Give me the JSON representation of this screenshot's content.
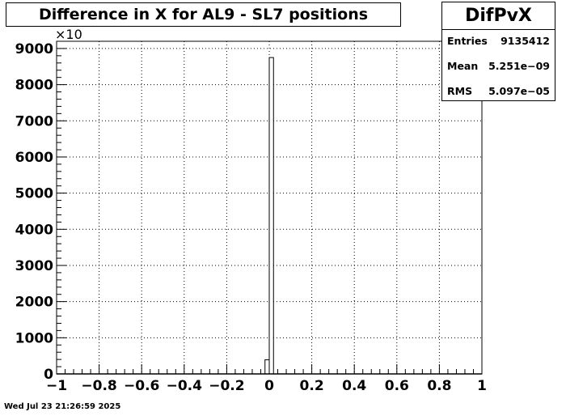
{
  "chart_data": {
    "type": "bar",
    "title": "Difference in X for AL9 - SL7 positions",
    "xlabel": "",
    "ylabel": "",
    "xlim": [
      -1,
      1
    ],
    "ylim": [
      0,
      9200
    ],
    "y_multiplier_label": "×10",
    "x_ticks": [
      -1,
      -0.8,
      -0.6,
      -0.4,
      -0.2,
      0,
      0.2,
      0.4,
      0.6,
      0.8,
      1
    ],
    "x_tick_labels": [
      "−1",
      "−0.8",
      "−0.6",
      "−0.4",
      "−0.2",
      "0",
      "0.2",
      "0.4",
      "0.6",
      "0.8",
      "1"
    ],
    "y_ticks": [
      0,
      1000,
      2000,
      3000,
      4000,
      5000,
      6000,
      7000,
      8000,
      9000
    ],
    "y_tick_labels": [
      "0",
      "1000",
      "2000",
      "3000",
      "4000",
      "5000",
      "6000",
      "7000",
      "8000",
      "9000"
    ],
    "grid": true,
    "bins": [
      {
        "x0": -0.02,
        "x1": 0.0,
        "value": 390
      },
      {
        "x0": 0.0,
        "x1": 0.02,
        "value": 8750
      }
    ]
  },
  "stats": {
    "name": "DifPvX",
    "rows": [
      {
        "label": "Entries",
        "value": "9135412"
      },
      {
        "label": "Mean",
        "value": "5.251e−09"
      },
      {
        "label": "RMS",
        "value": "5.097e−05"
      }
    ]
  },
  "footer": {
    "timestamp": "Wed Jul 23 21:26:59 2025"
  }
}
